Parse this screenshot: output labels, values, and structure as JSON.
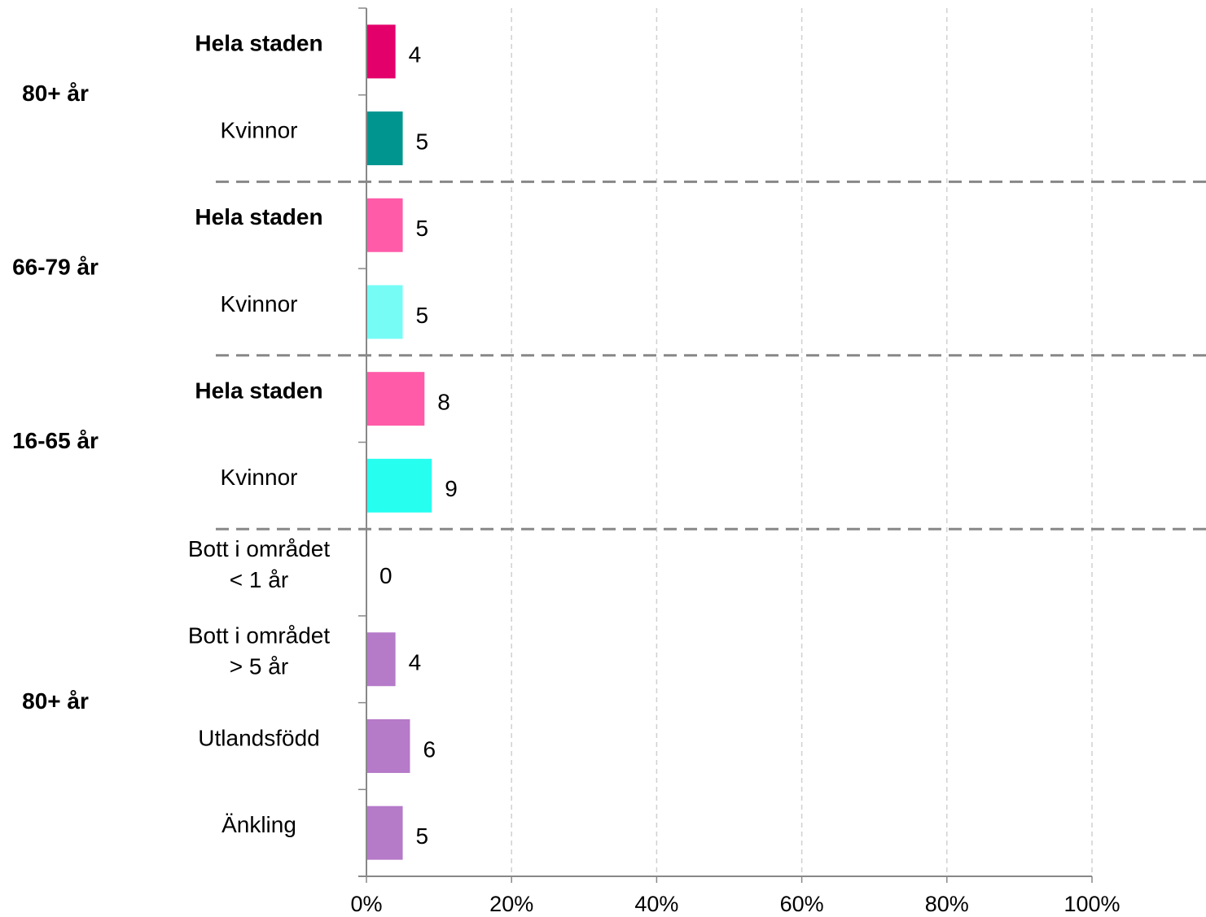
{
  "chart_data": {
    "type": "grouped-hbar",
    "groups": [
      {
        "label": "80+ år",
        "items": [
          {
            "label": [
              "Hela staden"
            ],
            "value": 4,
            "color": "#e3006b",
            "bold": true
          },
          {
            "label": [
              "Kvinnor"
            ],
            "value": 5,
            "color": "#00968f",
            "bold": false
          }
        ]
      },
      {
        "label": "66-79 år",
        "items": [
          {
            "label": [
              "Hela staden"
            ],
            "value": 5,
            "color": "#ff5ba8",
            "bold": true
          },
          {
            "label": [
              "Kvinnor"
            ],
            "value": 5,
            "color": "#76fcf5",
            "bold": false
          }
        ]
      },
      {
        "label": "16-65 år",
        "items": [
          {
            "label": [
              "Hela staden"
            ],
            "value": 8,
            "color": "#ff5ba8",
            "bold": true
          },
          {
            "label": [
              "Kvinnor"
            ],
            "value": 9,
            "color": "#26fff0",
            "bold": false
          }
        ]
      },
      {
        "label": "80+ år",
        "items": [
          {
            "label": [
              "Bott i området",
              "< 1 år"
            ],
            "value": 0,
            "color": "#b57ac8",
            "bold": false
          },
          {
            "label": [
              "Bott i området",
              "> 5 år"
            ],
            "value": 4,
            "color": "#b57ac8",
            "bold": false
          },
          {
            "label": [
              "Utlandsfödd"
            ],
            "value": 6,
            "color": "#b57ac8",
            "bold": false
          },
          {
            "label": [
              "Änkling"
            ],
            "value": 5,
            "color": "#b57ac8",
            "bold": false
          }
        ]
      }
    ],
    "xlim": [
      0,
      100
    ],
    "xticks": [
      {
        "value": 0,
        "label": "0%"
      },
      {
        "value": 20,
        "label": "20%"
      },
      {
        "value": 40,
        "label": "40%"
      },
      {
        "value": 60,
        "label": "60%"
      },
      {
        "value": 80,
        "label": "80%"
      },
      {
        "value": 100,
        "label": "100%"
      }
    ],
    "grid": true
  }
}
